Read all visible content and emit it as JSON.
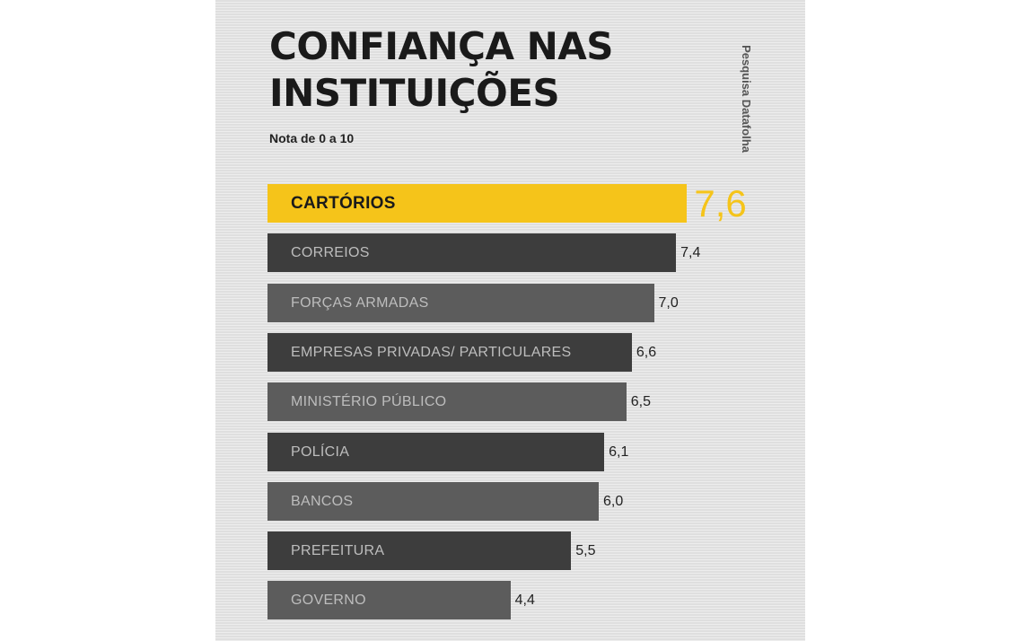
{
  "chart_data": {
    "type": "bar",
    "orientation": "horizontal",
    "title_lines": [
      "CONFIANÇA NAS",
      "INSTITUIÇÕES"
    ],
    "subtitle": "Nota de 0 a 10",
    "source": "Pesquisa Datafolha",
    "categories": [
      "CARTÓRIOS",
      "CORREIOS",
      "FORÇAS ARMADAS",
      "EMPRESAS PRIVADAS/ PARTICULARES",
      "MINISTÉRIO PÚBLICO",
      "POLÍCIA",
      "BANCOS",
      "PREFEITURA",
      "GOVERNO"
    ],
    "values": [
      7.6,
      7.4,
      7.0,
      6.6,
      6.5,
      6.1,
      6.0,
      5.5,
      4.4
    ],
    "value_labels": [
      "7,6",
      "7,4",
      "7,0",
      "6,6",
      "6,5",
      "6,1",
      "6,0",
      "5,5",
      "4,4"
    ],
    "highlight_index": 0,
    "xlim": [
      0,
      10
    ],
    "grid": false,
    "colors": {
      "highlight": "#f5c41a",
      "dark": "#3d3d3d",
      "light": "#5c5c5c"
    }
  }
}
